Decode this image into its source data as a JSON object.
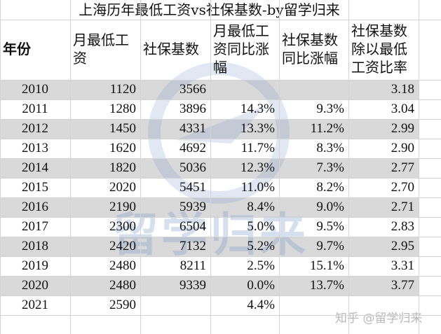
{
  "title": "上海历年最低工资vs社保基数-by留学归来",
  "table": {
    "header": [
      "年份",
      "月最低工资",
      "社保基数",
      "月最低工资同比涨幅",
      "社保基数同比涨幅",
      "社保基数除以最低工资比率"
    ],
    "rows": [
      [
        "2010",
        "1120",
        "3566",
        null,
        null,
        "3.18"
      ],
      [
        "2011",
        "1280",
        "3896",
        "14.3%",
        "9.3%",
        "3.04"
      ],
      [
        "2012",
        "1450",
        "4331",
        "13.3%",
        "11.2%",
        "2.99"
      ],
      [
        "2013",
        "1620",
        "4692",
        "11.7%",
        "8.3%",
        "2.90"
      ],
      [
        "2014",
        "1820",
        "5036",
        "12.3%",
        "7.3%",
        "2.77"
      ],
      [
        "2015",
        "2020",
        "5451",
        "11.0%",
        "8.2%",
        "2.70"
      ],
      [
        "2016",
        "2190",
        "5939",
        "8.4%",
        "9.0%",
        "2.71"
      ],
      [
        "2017",
        "2300",
        "6504",
        "5.0%",
        "9.5%",
        "2.83"
      ],
      [
        "2018",
        "2420",
        "7132",
        "5.2%",
        "9.7%",
        "2.95"
      ],
      [
        "2019",
        "2480",
        "8211",
        "2.5%",
        "15.1%",
        "3.31"
      ],
      [
        "2020",
        "2480",
        "9339",
        "0.0%",
        "13.7%",
        "3.77"
      ],
      [
        "2021",
        "2590",
        null,
        "4.4%",
        null,
        null
      ]
    ]
  },
  "watermark": "留学归来",
  "credit": "知乎 @留学归来"
}
